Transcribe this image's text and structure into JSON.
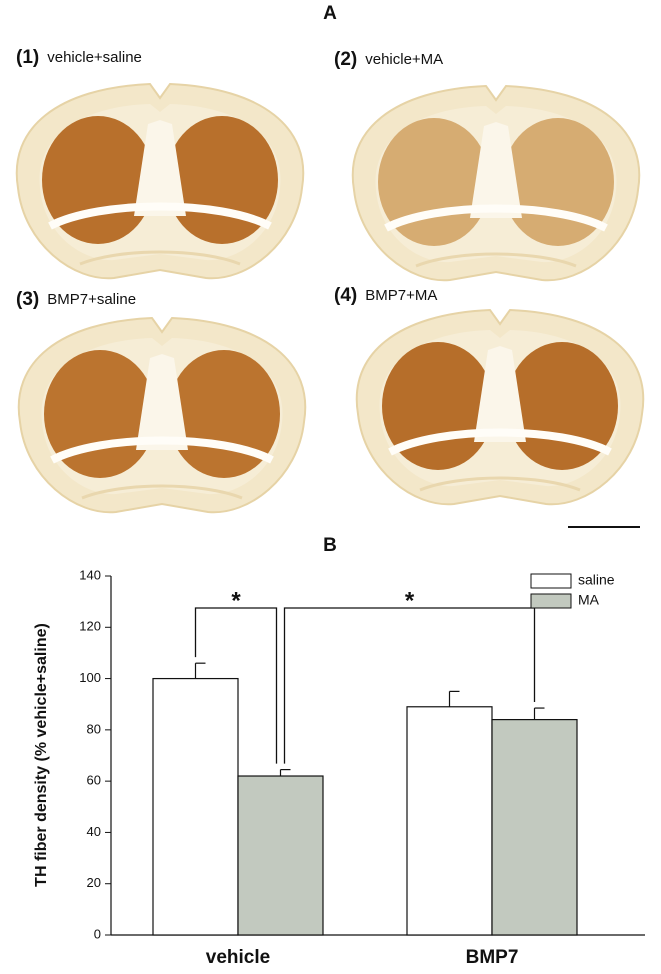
{
  "panel_a": {
    "label": "A",
    "images": [
      {
        "number": "(1)",
        "label": "vehicle+saline"
      },
      {
        "number": "(2)",
        "label": "vehicle+MA"
      },
      {
        "number": "(3)",
        "label": "BMP7+saline"
      },
      {
        "number": "(4)",
        "label": "BMP7+MA"
      }
    ]
  },
  "chart_data": {
    "type": "bar",
    "title": "B",
    "y_label": "TH fiber density (% vehicle+saline)",
    "categories": [
      "vehicle",
      "BMP7"
    ],
    "series": [
      {
        "name": "saline",
        "color": "#ffffff",
        "values": [
          100,
          89
        ],
        "errors": [
          6,
          6
        ]
      },
      {
        "name": "MA",
        "color": "#c2c9bf",
        "values": [
          62,
          84
        ],
        "errors": [
          2.5,
          4.5
        ]
      }
    ],
    "ylim": [
      0,
      140
    ],
    "yticks": [
      0,
      20,
      40,
      60,
      80,
      100,
      120,
      140
    ],
    "legend": "top-right",
    "annotations": [
      "*",
      "*"
    ]
  }
}
